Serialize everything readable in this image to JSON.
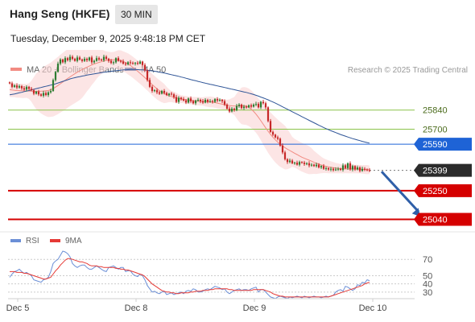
{
  "header": {
    "title": "Hang Seng (HKFE)",
    "interval": "30 MIN"
  },
  "timestamp": "Tuesday, December 9, 2025 9:48:18 PM CET",
  "colors": {
    "up": "#2e7d32",
    "down": "#c62828",
    "ma20": "#f28b82",
    "bands": "#fad4d4",
    "ma50": "#2f5597",
    "support": "#d50000",
    "resistance_green": "#8bc34a",
    "pivot_blue": "#1e63d6",
    "arrow": "#2f5fa8",
    "rsi": "#6b8fd6",
    "rsi_ma": "#e53935"
  },
  "chart_data": [
    {
      "type": "candlestick",
      "title": "Hang Seng (HKFE)",
      "interval": "30 MIN",
      "legend": [
        {
          "name": "MA 20 + Bollinger Bands",
          "color": "#f28b82"
        },
        {
          "name": "MA 50",
          "color": "#2f5597"
        }
      ],
      "attribution": "Research © 2025 Trading Central",
      "x_labels": [
        "Dec 5",
        "Dec 8",
        "Dec 9",
        "Dec 10"
      ],
      "x_label_bar_index": [
        8,
        57,
        106,
        155
      ],
      "ylim": [
        24925,
        26080
      ],
      "close": [
        26035,
        26010,
        26020,
        26005,
        26015,
        26000,
        25990,
        26010,
        25995,
        25985,
        25960,
        25975,
        25955,
        25945,
        25965,
        25950,
        25970,
        25980,
        26060,
        26120,
        26180,
        26210,
        26190,
        26220,
        26205,
        26230,
        26215,
        26200,
        26225,
        26210,
        26200,
        26215,
        26205,
        26225,
        26190,
        26200,
        26220,
        26210,
        26205,
        26230,
        26215,
        26200,
        26185,
        26190,
        26220,
        26200,
        26195,
        26180,
        26175,
        26190,
        26185,
        26180,
        26185,
        26180,
        26195,
        26170,
        26130,
        26060,
        26010,
        25980,
        25985,
        25970,
        25960,
        25980,
        25965,
        25950,
        25960,
        25955,
        25935,
        25900,
        25930,
        25920,
        25910,
        25895,
        25925,
        25905,
        25890,
        25910,
        25915,
        25905,
        25895,
        25915,
        25900,
        25905,
        25900,
        25920,
        25910,
        25915,
        25905,
        25880,
        25850,
        25830,
        25850,
        25840,
        25870,
        25880,
        25855,
        25865,
        25860,
        25875,
        25865,
        25880,
        25885,
        25860,
        25900,
        25890,
        25860,
        25760,
        25680,
        25660,
        25640,
        25630,
        25580,
        25530,
        25480,
        25460,
        25470,
        25450,
        25455,
        25440,
        25460,
        25455,
        25445,
        25450,
        25435,
        25440,
        25430,
        25440,
        25420,
        25430,
        25410,
        25415,
        25405,
        25410,
        25400,
        25405,
        25410,
        25402,
        25435,
        25415,
        25450,
        25405,
        25430,
        25405,
        25420,
        25395,
        25410,
        25405,
        25400,
        25399
      ],
      "ma20": [
        25990,
        25987,
        25985,
        25983,
        25982,
        25981,
        25980,
        25980,
        25979,
        25978,
        25977,
        25977,
        25977,
        25978,
        25979,
        25981,
        25983,
        25989,
        25997,
        26008,
        26020,
        26033,
        26046,
        26058,
        26071,
        26083,
        26095,
        26106,
        26117,
        26127,
        26137,
        26146,
        26154,
        26162,
        26170,
        26177,
        26183,
        26189,
        26194,
        26199,
        26203,
        26205,
        26207,
        26208,
        26208,
        26206,
        26202,
        26196,
        26188,
        26178,
        26166,
        26153,
        26139,
        26124,
        26109,
        26093,
        26077,
        26061,
        26044,
        26027,
        26011,
        25996,
        25983,
        25971,
        25961,
        25952,
        25945,
        25939,
        25934,
        25929,
        25925,
        25921,
        25918,
        25915,
        25912,
        25910,
        25908,
        25906,
        25905,
        25904,
        25903,
        25902,
        25901,
        25900,
        25898,
        25895,
        25891,
        25887,
        25883,
        25879,
        25876,
        25873,
        25871,
        25870,
        25869,
        25870,
        25871,
        25871,
        25868,
        25860,
        25847,
        25830,
        25810,
        25787,
        25762,
        25736,
        25710,
        25685,
        25662,
        25641,
        25622,
        25605,
        25590,
        25577,
        25565,
        25554,
        25544,
        25534,
        25524,
        25514,
        25504,
        25495,
        25487,
        25480,
        25473,
        25466,
        25458,
        25450,
        25444,
        25438,
        25433,
        25429,
        25425,
        25421,
        25418,
        25415,
        25413,
        25411,
        25410,
        25410,
        25410,
        25409,
        25409,
        25408,
        25408,
        25407,
        25406,
        25405,
        25404,
        25403
      ],
      "ma50": [
        25952,
        25955,
        25958,
        25962,
        25966,
        25970,
        25975,
        25979,
        25983,
        25988,
        25992,
        25997,
        26001,
        26005,
        26010,
        26014,
        26018,
        26023,
        26027,
        26032,
        26038,
        26044,
        26050,
        26056,
        26062,
        26068,
        26073,
        26077,
        26081,
        26085,
        26089,
        26092,
        26096,
        26099,
        26102,
        26105,
        26108,
        26111,
        26114,
        26117,
        26119,
        26122,
        26124,
        26126,
        26128,
        26130,
        26132,
        26134,
        26135,
        26136,
        26137,
        26137,
        26137,
        26136,
        26135,
        26134,
        26133,
        26131,
        26129,
        26127,
        26124,
        26121,
        26118,
        26115,
        26111,
        26107,
        26103,
        26099,
        26095,
        26091,
        26087,
        26082,
        26078,
        26073,
        26068,
        26063,
        26059,
        26055,
        26050,
        26046,
        26041,
        26037,
        26033,
        26029,
        26025,
        26021,
        26017,
        26013,
        26009,
        26005,
        26001,
        25997,
        25993,
        25989,
        25985,
        25981,
        25977,
        25973,
        25969,
        25964,
        25959,
        25954,
        25948,
        25942,
        25935,
        25929,
        25922,
        25915,
        25907,
        25899,
        25891,
        25882,
        25873,
        25864,
        25855,
        25846,
        25837,
        25828,
        25819,
        25810,
        25801,
        25792,
        25783,
        25774,
        25765,
        25756,
        25747,
        25738,
        25729,
        25721,
        25712,
        25704,
        25697,
        25689,
        25682,
        25675,
        25668,
        25661,
        25655,
        25649,
        25643,
        25637,
        25631,
        25626,
        25621,
        25616,
        25611,
        25606,
        25602,
        25598
      ],
      "levels": [
        {
          "value": 25840,
          "label": "25840",
          "kind": "resistance"
        },
        {
          "value": 25700,
          "label": "25700",
          "kind": "resistance"
        },
        {
          "value": 25590,
          "label": "25590",
          "kind": "pivot"
        },
        {
          "value": 25399,
          "label": "25399",
          "kind": "last"
        },
        {
          "value": 25250,
          "label": "25250",
          "kind": "support"
        },
        {
          "value": 25040,
          "label": "25040",
          "kind": "support"
        }
      ],
      "projection": {
        "from": {
          "bar": 154,
          "value": 25390
        },
        "to": {
          "bar": 170,
          "value": 25060
        }
      }
    },
    {
      "type": "line",
      "title": "RSI",
      "legend": [
        {
          "name": "RSI",
          "color": "#6b8fd6"
        },
        {
          "name": "9MA",
          "color": "#e53935"
        }
      ],
      "ylim": [
        18,
        82
      ],
      "ticks": [
        70,
        50,
        40,
        30
      ],
      "rsi": [
        48,
        52,
        55,
        56,
        58,
        55,
        53,
        54,
        52,
        50,
        45,
        44,
        43,
        42,
        45,
        46,
        48,
        55,
        65,
        68,
        70,
        75,
        80,
        79,
        77,
        73,
        65,
        62,
        60,
        62,
        63,
        63,
        60,
        58,
        58,
        60,
        62,
        60,
        58,
        56,
        55,
        60,
        61,
        62,
        60,
        58,
        60,
        60,
        55,
        56,
        56,
        52,
        50,
        49,
        52,
        50,
        45,
        38,
        34,
        30,
        31,
        29,
        28,
        30,
        31,
        27,
        28,
        29,
        27,
        28,
        29,
        30,
        28,
        31,
        32,
        31,
        34,
        33,
        30,
        30,
        31,
        33,
        34,
        33,
        35,
        37,
        36,
        35,
        33,
        34,
        30,
        28,
        30,
        32,
        33,
        34,
        32,
        33,
        33,
        32,
        34,
        35,
        36,
        30,
        33,
        33,
        30,
        27,
        24,
        23,
        22,
        24,
        25,
        24,
        23,
        22,
        24,
        23,
        24,
        25,
        24,
        23,
        25,
        24,
        23,
        24,
        25,
        24,
        24,
        23,
        24,
        25,
        24,
        25,
        26,
        30,
        32,
        33,
        31,
        37,
        36,
        34,
        32,
        34,
        39,
        38,
        42,
        41,
        45,
        44
      ],
      "rsi_ma": [
        55,
        55,
        55,
        54,
        54,
        54,
        53,
        53,
        52,
        51,
        50,
        49,
        48,
        47,
        46,
        46,
        47,
        48,
        52,
        56,
        59,
        63,
        66,
        69,
        71,
        71,
        70,
        69,
        68,
        67,
        67,
        66,
        65,
        63,
        62,
        62,
        62,
        61,
        61,
        60,
        60,
        60,
        60,
        60,
        59,
        59,
        58,
        58,
        57,
        57,
        56,
        55,
        54,
        53,
        52,
        51,
        49,
        46,
        43,
        40,
        38,
        36,
        34,
        32,
        31,
        30,
        30,
        29,
        29,
        28,
        28,
        29,
        29,
        29,
        29,
        30,
        30,
        31,
        31,
        31,
        32,
        32,
        32,
        33,
        33,
        34,
        34,
        34,
        34,
        34,
        34,
        33,
        33,
        32,
        32,
        32,
        32,
        32,
        32,
        32,
        32,
        33,
        33,
        33,
        33,
        33,
        32,
        31,
        30,
        28,
        27,
        26,
        25,
        25,
        24,
        24,
        24,
        24,
        24,
        24,
        24,
        24,
        24,
        24,
        24,
        24,
        24,
        24,
        24,
        24,
        24,
        24,
        24,
        25,
        26,
        27,
        28,
        29,
        30,
        31,
        32,
        33,
        34,
        35,
        36,
        37,
        38,
        40,
        41,
        42
      ]
    }
  ]
}
